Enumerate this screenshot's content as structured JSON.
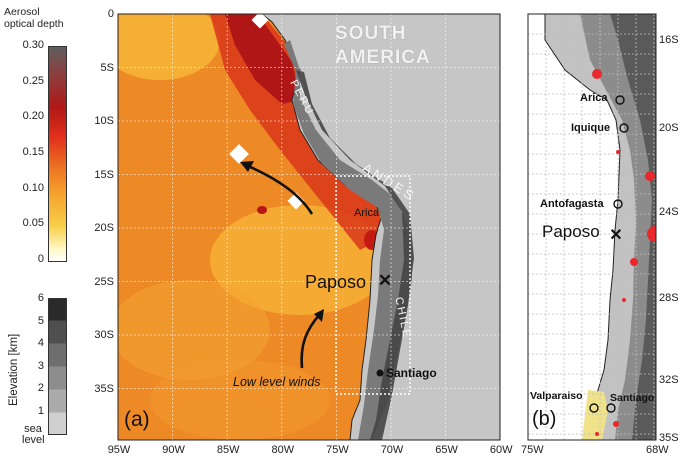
{
  "aod_colorbar": {
    "title_line1": "Aerosol",
    "title_line2": "optical depth",
    "ticks": [
      "0.30",
      "0.25",
      "0.20",
      "0.15",
      "0.10",
      "0.05",
      "0"
    ]
  },
  "elevation_colorbar": {
    "label": "Elevation [km]",
    "ticks": [
      "6",
      "5",
      "4",
      "3",
      "2",
      "1"
    ],
    "sea_label_line1": "sea",
    "sea_label_line2": "level"
  },
  "panel_a": {
    "label": "(a)",
    "lat_ticks": [
      "0",
      "5S",
      "10S",
      "15S",
      "20S",
      "25S",
      "30S",
      "35S"
    ],
    "lon_ticks": [
      "95W",
      "90W",
      "85W",
      "80W",
      "75W",
      "70W",
      "65W",
      "60W"
    ],
    "continent_line1": "SOUTH",
    "continent_line2": "AMERICA",
    "country_peru": "PERU",
    "country_chile": "CHILE",
    "range_andes": "ANDES",
    "city_arica": "Arica",
    "site_paposo": "Paposo",
    "city_santiago": "Santiago",
    "winds_label": "Low level winds"
  },
  "panel_b": {
    "label": "(b)",
    "lat_ticks": [
      "16S",
      "20S",
      "24S",
      "28S",
      "32S",
      "35S"
    ],
    "lon_ticks": [
      "75W",
      "68W"
    ],
    "cities": [
      "Arica",
      "Iquique",
      "Antofagasta",
      "Valparaiso",
      "Santiago"
    ],
    "site_paposo": "Paposo"
  },
  "colors": {
    "ocean_high": "#d42a16",
    "ocean_mid": "#ee8a25",
    "ocean_low": "#f7c640",
    "land": "#c8c8c8",
    "andes": "#6a6a6a"
  }
}
